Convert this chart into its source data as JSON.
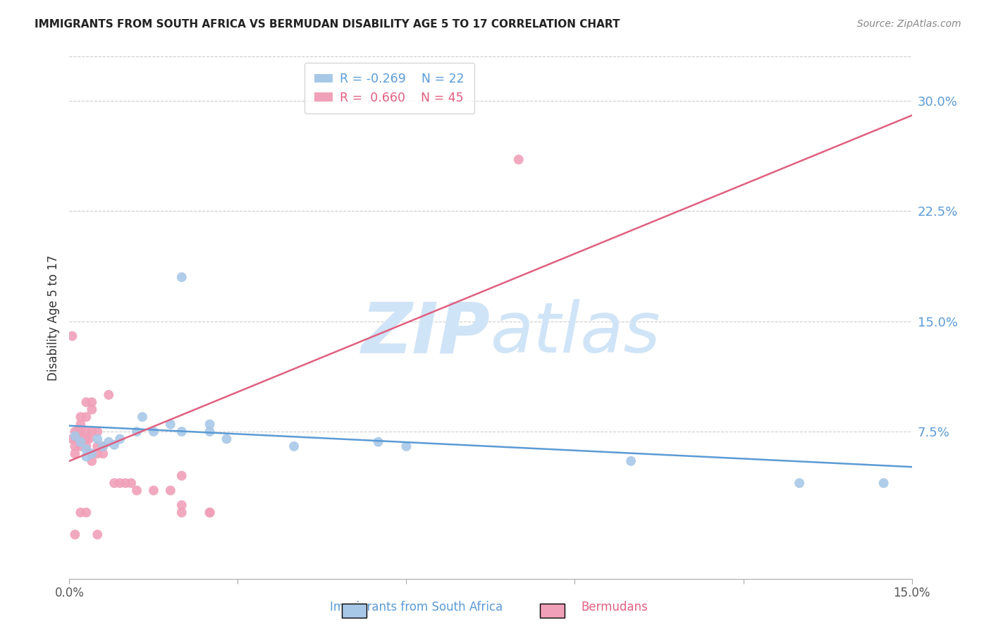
{
  "title": "IMMIGRANTS FROM SOUTH AFRICA VS BERMUDAN DISABILITY AGE 5 TO 17 CORRELATION CHART",
  "source": "Source: ZipAtlas.com",
  "xlabel_blue": "Immigrants from South Africa",
  "xlabel_pink": "Bermudans",
  "ylabel": "Disability Age 5 to 17",
  "xlim": [
    0.0,
    0.15
  ],
  "ylim": [
    -0.025,
    0.33
  ],
  "yticks": [
    0.075,
    0.15,
    0.225,
    0.3
  ],
  "ytick_labels": [
    "7.5%",
    "15.0%",
    "22.5%",
    "30.0%"
  ],
  "xticks": [
    0.0,
    0.03,
    0.06,
    0.09,
    0.12,
    0.15
  ],
  "xtick_labels": [
    "0.0%",
    "",
    "",
    "",
    "",
    "15.0%"
  ],
  "legend_blue_R": "R = -0.269",
  "legend_blue_N": "N = 22",
  "legend_pink_R": "R =  0.660",
  "legend_pink_N": "N = 45",
  "blue_color": "#a8c8e8",
  "pink_color": "#f0a0b8",
  "blue_line_color": "#5b9bd5",
  "pink_line_color": "#e06080",
  "watermark_color": "#d0e4f7",
  "blue_scatter_x": [
    0.001,
    0.002,
    0.003,
    0.003,
    0.004,
    0.005,
    0.006,
    0.007,
    0.008,
    0.009,
    0.012,
    0.013,
    0.015,
    0.018,
    0.02,
    0.025,
    0.025,
    0.028,
    0.04,
    0.055,
    0.06,
    0.1,
    0.13,
    0.145
  ],
  "blue_scatter_y": [
    0.072,
    0.068,
    0.063,
    0.058,
    0.06,
    0.07,
    0.065,
    0.068,
    0.066,
    0.07,
    0.075,
    0.085,
    0.075,
    0.08,
    0.075,
    0.08,
    0.075,
    0.07,
    0.065,
    0.068,
    0.065,
    0.055,
    0.04,
    0.04
  ],
  "blue_outlier_x": [
    0.02
  ],
  "blue_outlier_y": [
    0.18
  ],
  "pink_scatter_x": [
    0.0005,
    0.001,
    0.001,
    0.001,
    0.001,
    0.0015,
    0.002,
    0.002,
    0.002,
    0.002,
    0.002,
    0.0025,
    0.003,
    0.003,
    0.003,
    0.003,
    0.003,
    0.0035,
    0.004,
    0.004,
    0.004,
    0.004,
    0.004,
    0.005,
    0.005,
    0.005,
    0.006,
    0.006,
    0.007,
    0.008,
    0.009,
    0.01,
    0.011,
    0.012,
    0.015,
    0.018,
    0.02,
    0.02,
    0.02,
    0.025,
    0.025,
    0.005,
    0.001,
    0.002,
    0.003
  ],
  "pink_scatter_y": [
    0.07,
    0.075,
    0.07,
    0.065,
    0.06,
    0.075,
    0.085,
    0.08,
    0.075,
    0.07,
    0.065,
    0.07,
    0.095,
    0.085,
    0.075,
    0.07,
    0.065,
    0.07,
    0.095,
    0.09,
    0.075,
    0.06,
    0.055,
    0.075,
    0.065,
    0.06,
    0.065,
    0.06,
    0.1,
    0.04,
    0.04,
    0.04,
    0.04,
    0.035,
    0.035,
    0.035,
    0.045,
    0.025,
    0.02,
    0.02,
    0.02,
    0.005,
    0.005,
    0.02,
    0.02
  ],
  "pink_outlier_x": [
    0.08
  ],
  "pink_outlier_y": [
    0.26
  ],
  "pink_left_outlier_x": [
    0.0005
  ],
  "pink_left_outlier_y": [
    0.14
  ],
  "blue_trend_x": [
    0.0,
    0.15
  ],
  "blue_trend_y": [
    0.079,
    0.051
  ],
  "pink_trend_x": [
    0.0,
    0.15
  ],
  "pink_trend_y": [
    0.055,
    0.29
  ]
}
